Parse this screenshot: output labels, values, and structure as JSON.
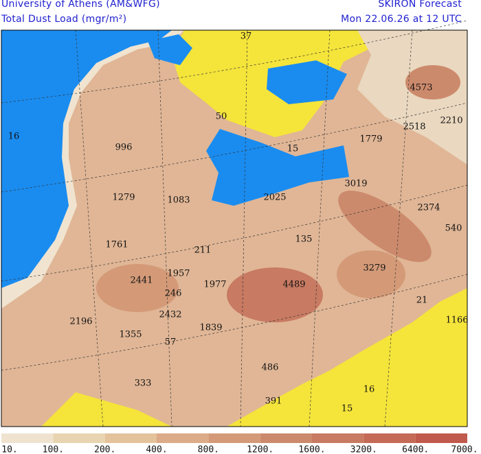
{
  "header": {
    "institution": "University of Athens (AM&WFG)",
    "product": "Total Dust Load (mgr/m²)",
    "model": "SKIRON Forecast",
    "valid_time": "Mon 22.06.26 at 12 UTC"
  },
  "map_labels": [
    37,
    50,
    16,
    996,
    4573,
    2518,
    2210,
    1779,
    15,
    3019,
    1279,
    1083,
    2025,
    2374,
    540,
    1761,
    211,
    135,
    3279,
    2441,
    1957,
    1977,
    4489,
    246,
    21,
    2196,
    2432,
    1839,
    1166,
    1355,
    57,
    486,
    333,
    16,
    391,
    15
  ],
  "legend": {
    "labels": [
      "10.",
      "100.",
      "200.",
      "400.",
      "800.",
      "1200.",
      "1600.",
      "3200.",
      "6400.",
      "7000."
    ],
    "colors": [
      "#efe3cf",
      "#e8d4b0",
      "#e4c29c",
      "#dcab88",
      "#d49a78",
      "#cc8a6c",
      "#c87a62",
      "#c46a56",
      "#c05a4c"
    ]
  }
}
